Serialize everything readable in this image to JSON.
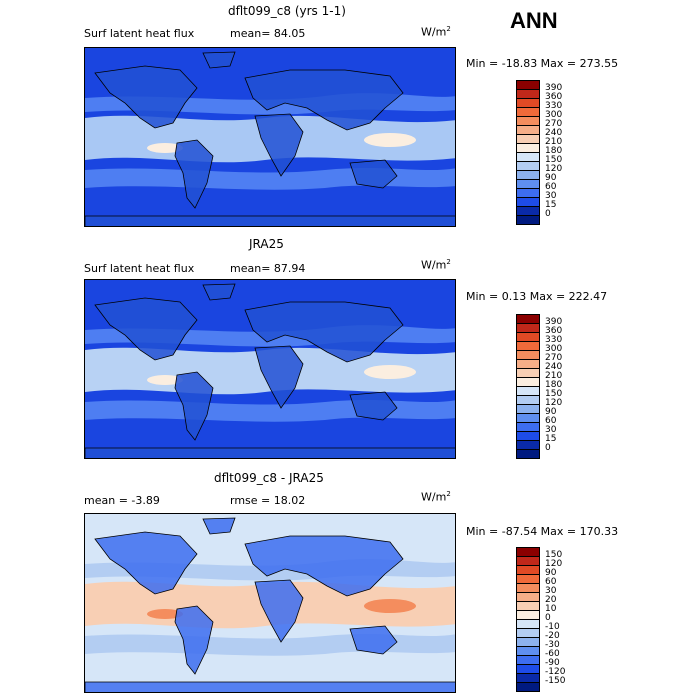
{
  "season": "ANN",
  "panels": [
    {
      "title": "dflt099_c8 (yrs 1-1)",
      "left_text": "Surf latent heat flux",
      "mean_text": "mean=  84.05",
      "units": "W/m",
      "units_sup": "2",
      "minmax": "Min = -18.83  Max = 273.55",
      "colorbar_labels": [
        "390",
        "360",
        "330",
        "300",
        "270",
        "240",
        "210",
        "180",
        "150",
        "120",
        "90",
        "60",
        "30",
        "15",
        "0"
      ],
      "colorbar_colors": [
        "#8b0000",
        "#c0281a",
        "#e04a25",
        "#f06a3a",
        "#f48d5e",
        "#f6ae88",
        "#f8cfb4",
        "#fbeee0",
        "#d6e6f8",
        "#b3cdf2",
        "#8db2ee",
        "#5f8ff0",
        "#3d6df0",
        "#1e4ce8",
        "#0a2aa8",
        "#001a80"
      ],
      "palette": {
        "ocean": "#1a45e0",
        "mid": "#4e7ef2",
        "light": "#a9c8f4",
        "warm": "#fbeee0",
        "land": "#2251d4"
      }
    },
    {
      "title": "JRA25",
      "left_text": "Surf latent heat flux",
      "mean_text": "mean=  87.94",
      "units": "W/m",
      "units_sup": "2",
      "minmax": "Min =   0.13  Max = 222.47",
      "colorbar_labels": [
        "390",
        "360",
        "330",
        "300",
        "270",
        "240",
        "210",
        "180",
        "150",
        "120",
        "90",
        "60",
        "30",
        "15",
        "0"
      ],
      "colorbar_colors": [
        "#8b0000",
        "#c0281a",
        "#e04a25",
        "#f06a3a",
        "#f48d5e",
        "#f6ae88",
        "#f8cfb4",
        "#fbeee0",
        "#d6e6f8",
        "#b3cdf2",
        "#8db2ee",
        "#5f8ff0",
        "#3d6df0",
        "#1e4ce8",
        "#0a2aa8",
        "#001a80"
      ],
      "palette": {
        "ocean": "#1a45e0",
        "mid": "#4e7ef2",
        "light": "#b8d2f4",
        "warm": "#fbeee0",
        "land": "#2251d4"
      }
    },
    {
      "title": "dflt099_c8 - JRA25",
      "left_text": "mean =   -3.89",
      "mean_text": "rmse =   18.02",
      "units": "W/m",
      "units_sup": "2",
      "minmax": "Min = -87.54  Max = 170.33",
      "colorbar_labels": [
        "150",
        "120",
        "90",
        "60",
        "30",
        "20",
        "10",
        "0",
        "-10",
        "-20",
        "-30",
        "-60",
        "-90",
        "-120",
        "-150"
      ],
      "colorbar_colors": [
        "#8b0000",
        "#c0281a",
        "#e04a25",
        "#f06a3a",
        "#f48d5e",
        "#f6ae88",
        "#f8cfb4",
        "#fbeee0",
        "#d6e6f8",
        "#b3cdf2",
        "#8db2ee",
        "#5f8ff0",
        "#3d6df0",
        "#1e4ce8",
        "#0a2aa8",
        "#001a80"
      ],
      "palette": {
        "ocean": "#d6e6f8",
        "mid": "#b3cdf2",
        "light": "#f8cfb4",
        "warm": "#f48d5e",
        "land": "#3d6df0"
      }
    }
  ],
  "chart_data": {
    "type": "heatmap",
    "description_fields": [
      "title",
      "subtitle",
      "mean",
      "minmax",
      "colorbar"
    ],
    "maps": [
      {
        "title": "dflt099_c8 (yrs 1-1)",
        "variable": "Surf latent heat flux",
        "mean": 84.05,
        "min": -18.83,
        "max": 273.55,
        "units": "W/m2",
        "colorbar_levels": [
          0,
          15,
          30,
          60,
          90,
          120,
          150,
          180,
          210,
          240,
          270,
          300,
          330,
          360,
          390
        ]
      },
      {
        "title": "JRA25",
        "variable": "Surf latent heat flux",
        "mean": 87.94,
        "min": 0.13,
        "max": 222.47,
        "units": "W/m2",
        "colorbar_levels": [
          0,
          15,
          30,
          60,
          90,
          120,
          150,
          180,
          210,
          240,
          270,
          300,
          330,
          360,
          390
        ]
      },
      {
        "title": "dflt099_c8 - JRA25",
        "mean": -3.89,
        "rmse": 18.02,
        "min": -87.54,
        "max": 170.33,
        "units": "W/m2",
        "colorbar_levels": [
          -150,
          -120,
          -90,
          -60,
          -30,
          -20,
          -10,
          0,
          10,
          20,
          30,
          60,
          90,
          120,
          150
        ]
      }
    ]
  }
}
